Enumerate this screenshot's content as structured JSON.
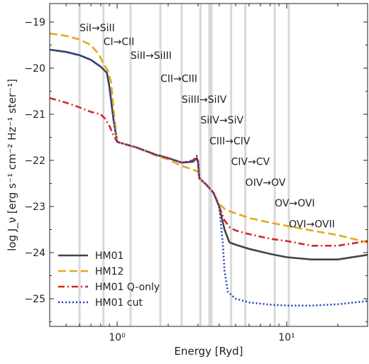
{
  "chart_data": {
    "type": "line",
    "title": "",
    "xlabel": "Energy [Ryd]",
    "ylabel": "log J_ν [erg s⁻¹ cm⁻² Hz⁻¹ ster⁻¹]",
    "xscale": "log",
    "xlim": [
      0.4,
      30
    ],
    "ylim": [
      -25.6,
      -18.6
    ],
    "x_ticks": [
      {
        "value": 1,
        "label": "10⁰"
      },
      {
        "value": 10,
        "label": "10¹"
      }
    ],
    "y_ticks": [
      {
        "value": -19,
        "label": "−19"
      },
      {
        "value": -20,
        "label": "−20"
      },
      {
        "value": -21,
        "label": "−21"
      },
      {
        "value": -22,
        "label": "−22"
      },
      {
        "value": -23,
        "label": "−23"
      },
      {
        "value": -24,
        "label": "−24"
      },
      {
        "value": -25,
        "label": "−25"
      }
    ],
    "ionization_edges": [
      0.6,
      0.83,
      1.2,
      1.8,
      2.4,
      3.1,
      3.5,
      3.6,
      4.7,
      5.7,
      8.5,
      10.3
    ],
    "annotations": [
      {
        "text": "SiI→SiII",
        "x": 0.6,
        "y": -19.2
      },
      {
        "text": "CI→CII",
        "x": 0.83,
        "y": -19.5
      },
      {
        "text": "SiII→SiIII",
        "x": 1.2,
        "y": -19.8
      },
      {
        "text": "CII→CIII",
        "x": 1.8,
        "y": -20.3
      },
      {
        "text": "SiIII→SiIV",
        "x": 2.4,
        "y": -20.75
      },
      {
        "text": "SiIV→SiV",
        "x": 3.1,
        "y": -21.2
      },
      {
        "text": "CIII→CIV",
        "x": 3.5,
        "y": -21.65
      },
      {
        "text": "CIV→CV",
        "x": 4.7,
        "y": -22.1
      },
      {
        "text": "OIV→OV",
        "x": 5.7,
        "y": -22.55
      },
      {
        "text": "OV→OVI",
        "x": 8.5,
        "y": -23.0
      },
      {
        "text": "OVI→OVII",
        "x": 10.3,
        "y": -23.45
      }
    ],
    "legend_position": "bottom-left",
    "series": [
      {
        "name": "HM01",
        "color": "#444444",
        "dash": "solid",
        "x": [
          0.4,
          0.5,
          0.6,
          0.7,
          0.8,
          0.87,
          0.9,
          0.95,
          1.0,
          1.3,
          1.7,
          2.0,
          2.4,
          2.8,
          2.95,
          3.0,
          3.05,
          3.4,
          3.7,
          4.0,
          4.3,
          4.6,
          5.0,
          6.0,
          8.0,
          10.0,
          14.0,
          20.0,
          30.0
        ],
        "y": [
          -19.6,
          -19.65,
          -19.72,
          -19.82,
          -19.97,
          -20.1,
          -20.4,
          -21.1,
          -21.6,
          -21.72,
          -21.88,
          -21.95,
          -22.05,
          -22.03,
          -21.95,
          -22.05,
          -22.38,
          -22.55,
          -22.7,
          -23.0,
          -23.5,
          -23.78,
          -23.83,
          -23.92,
          -24.03,
          -24.1,
          -24.15,
          -24.15,
          -24.05
        ]
      },
      {
        "name": "HM12",
        "color": "#e6a817",
        "dash": "dashed",
        "x": [
          0.4,
          0.5,
          0.6,
          0.7,
          0.78,
          0.83,
          0.88,
          0.92,
          0.96,
          1.0,
          1.3,
          1.7,
          2.0,
          2.4,
          2.8,
          3.0,
          3.05,
          3.4,
          3.7,
          4.0,
          4.3,
          4.6,
          5.0,
          6.0,
          8.0,
          10.0,
          14.0,
          20.0,
          30.0
        ],
        "y": [
          -19.25,
          -19.3,
          -19.38,
          -19.5,
          -19.7,
          -19.9,
          -20.05,
          -20.3,
          -21.0,
          -21.6,
          -21.72,
          -21.9,
          -21.98,
          -22.12,
          -22.2,
          -22.25,
          -22.4,
          -22.55,
          -22.7,
          -22.95,
          -23.05,
          -23.1,
          -23.15,
          -23.25,
          -23.35,
          -23.42,
          -23.52,
          -23.62,
          -23.78
        ]
      },
      {
        "name": "HM01 Q-only",
        "color": "#d62728",
        "dash": "dashdot",
        "x": [
          0.4,
          0.5,
          0.6,
          0.7,
          0.8,
          0.85,
          0.9,
          0.95,
          1.0,
          1.3,
          1.7,
          2.0,
          2.4,
          2.8,
          2.95,
          3.0,
          3.05,
          3.4,
          3.7,
          4.0,
          4.3,
          4.6,
          5.0,
          6.0,
          8.0,
          10.0,
          14.0,
          20.0,
          30.0
        ],
        "y": [
          -20.65,
          -20.75,
          -20.85,
          -20.95,
          -21.0,
          -21.1,
          -21.25,
          -21.45,
          -21.6,
          -21.72,
          -21.88,
          -21.95,
          -22.05,
          -22.0,
          -21.9,
          -22.0,
          -22.38,
          -22.55,
          -22.7,
          -23.0,
          -23.3,
          -23.45,
          -23.52,
          -23.6,
          -23.7,
          -23.75,
          -23.85,
          -23.85,
          -23.75
        ]
      },
      {
        "name": "HM01 cut",
        "color": "#1f3fbf",
        "dash": "dotted",
        "x": [
          0.4,
          0.5,
          0.6,
          0.7,
          0.8,
          0.87,
          0.9,
          0.95,
          1.0,
          1.3,
          1.7,
          2.0,
          2.4,
          2.8,
          2.95,
          3.0,
          3.05,
          3.4,
          3.7,
          4.0,
          4.2,
          4.3,
          4.5,
          5.0,
          6.0,
          8.0,
          10.0,
          14.0,
          20.0,
          30.0
        ],
        "y": [
          -19.6,
          -19.65,
          -19.72,
          -19.82,
          -19.97,
          -20.1,
          -20.4,
          -21.1,
          -21.6,
          -21.72,
          -21.88,
          -21.95,
          -22.05,
          -22.03,
          -21.95,
          -22.05,
          -22.38,
          -22.55,
          -22.7,
          -23.0,
          -23.8,
          -24.4,
          -24.85,
          -25.0,
          -25.08,
          -25.13,
          -25.15,
          -25.15,
          -25.12,
          -25.05
        ]
      }
    ]
  }
}
